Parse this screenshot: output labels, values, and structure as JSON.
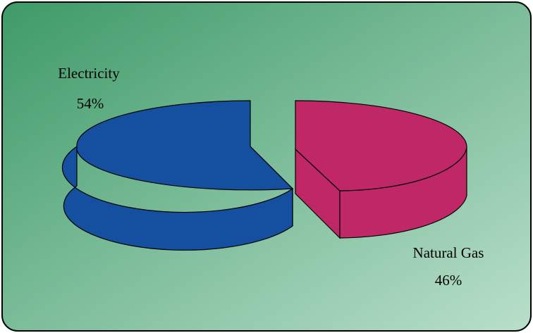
{
  "chart_data": {
    "type": "pie",
    "style": "3d-exploded",
    "title": "",
    "slices": [
      {
        "label": "Electricity",
        "value": 54,
        "value_label": "54%",
        "color": "#1550A0"
      },
      {
        "label": "Natural Gas",
        "value": 46,
        "value_label": "46%",
        "color": "#BF2766"
      }
    ]
  },
  "theme": {
    "background_gradient": [
      "#3E9A68",
      "#B9DFCB"
    ],
    "border_color": "#000000"
  }
}
